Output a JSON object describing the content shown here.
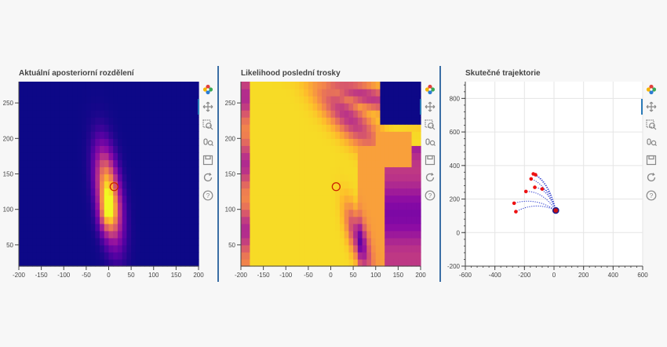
{
  "colors": {
    "plasma_low": "#0d0887",
    "plasma_high": "#f0f921",
    "marker_circle": "#cc2200",
    "trajectory_line": "#2233cc",
    "trajectory_points": "#ee1111",
    "divider": "#3b6ea5"
  },
  "toolbar_icons": [
    "bokeh-logo-icon",
    "pan-icon",
    "zoom-icon",
    "wheel-zoom-icon",
    "save-icon",
    "reset-icon",
    "help-icon"
  ],
  "chart_data": [
    {
      "type": "heatmap",
      "title": "Aktuální aposteriorní rozdělení",
      "xlim": [
        -200,
        200
      ],
      "ylim": [
        20,
        280
      ],
      "x_ticks": [
        -200,
        -150,
        -100,
        -50,
        0,
        50,
        100,
        150,
        200
      ],
      "y_ticks": [
        50,
        100,
        150,
        200,
        250
      ],
      "marker": {
        "x": 12,
        "y": 132
      },
      "field": "posterior"
    },
    {
      "type": "heatmap",
      "title": "Likelihood poslední trosky",
      "xlim": [
        -200,
        200
      ],
      "ylim": [
        20,
        280
      ],
      "x_ticks": [
        -200,
        -150,
        -100,
        -50,
        0,
        50,
        100,
        150,
        200
      ],
      "y_ticks": [
        50,
        100,
        150,
        200,
        250
      ],
      "marker": {
        "x": 12,
        "y": 132
      },
      "field": "likelihood"
    },
    {
      "type": "scatter",
      "title": "Skutečné trajektorie",
      "xlim": [
        -600,
        600
      ],
      "ylim": [
        -200,
        900
      ],
      "x_ticks": [
        -600,
        -400,
        -200,
        0,
        200,
        400,
        600
      ],
      "y_ticks": [
        -200,
        0,
        200,
        400,
        600,
        800
      ],
      "grid": true,
      "origin": {
        "x": 12,
        "y": 132
      },
      "endpoints": [
        {
          "x": -270,
          "y": 175
        },
        {
          "x": -258,
          "y": 125
        },
        {
          "x": -190,
          "y": 245
        },
        {
          "x": -155,
          "y": 320
        },
        {
          "x": -140,
          "y": 350
        },
        {
          "x": -125,
          "y": 345
        },
        {
          "x": -130,
          "y": 270
        },
        {
          "x": -80,
          "y": 260
        }
      ]
    }
  ]
}
